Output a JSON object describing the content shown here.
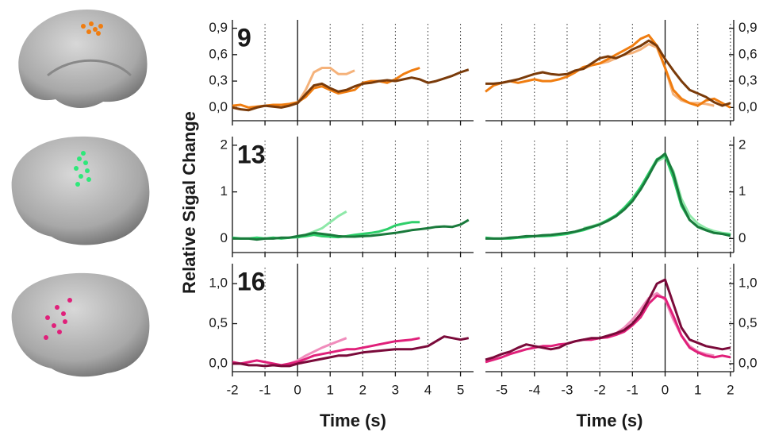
{
  "ylabel": "Relative Sigal Change",
  "chart_data": [
    {
      "type": "line",
      "label": "9",
      "yaxis": "left",
      "grid": true,
      "xlim": [
        -2,
        5.4
      ],
      "xticks": [
        -2,
        -1,
        0,
        1,
        2,
        3,
        4,
        5
      ],
      "ylim": [
        -0.15,
        0.95
      ],
      "yticks": [
        {
          "value": 0,
          "label": "0,0"
        },
        {
          "value": 0.3,
          "label": "0,3"
        },
        {
          "value": 0.6,
          "label": "0,6"
        },
        {
          "value": 0.9,
          "label": "0,9"
        }
      ],
      "x": [
        -2,
        -1.75,
        -1.5,
        -1.25,
        -1,
        -0.75,
        -0.5,
        -0.25,
        0,
        0.25,
        0.5,
        0.75,
        1,
        1.25,
        1.5,
        1.75,
        2,
        2.25,
        2.5,
        2.75,
        3,
        3.25,
        3.5,
        3.75,
        4,
        4.25,
        4.5,
        4.75,
        5,
        5.25
      ],
      "series": [
        {
          "color": "#f5b27a",
          "values": [
            null,
            null,
            null,
            null,
            null,
            null,
            null,
            null,
            0.05,
            0.2,
            0.4,
            0.45,
            0.45,
            0.38,
            0.38,
            0.42,
            null,
            null,
            null,
            null,
            null,
            null,
            null,
            null,
            null,
            null,
            null,
            null,
            null,
            null
          ]
        },
        {
          "color": "#f07d10",
          "values": [
            0.02,
            0.03,
            0.0,
            0.01,
            0.02,
            0.03,
            0.03,
            0.04,
            0.06,
            0.12,
            0.22,
            0.24,
            0.2,
            0.16,
            0.18,
            0.2,
            0.28,
            0.3,
            0.3,
            0.28,
            0.32,
            0.38,
            0.42,
            0.45,
            null,
            null,
            null,
            null,
            null,
            null
          ]
        },
        {
          "color": "#7a3b0a",
          "values": [
            0.0,
            -0.02,
            -0.03,
            0.0,
            0.02,
            0.01,
            0.0,
            0.02,
            0.05,
            0.15,
            0.25,
            0.27,
            0.22,
            0.18,
            0.2,
            0.24,
            0.27,
            0.28,
            0.3,
            0.31,
            0.3,
            0.32,
            0.34,
            0.32,
            0.28,
            0.3,
            0.33,
            0.36,
            0.4,
            0.43
          ]
        }
      ]
    },
    {
      "type": "line",
      "yaxis": "right",
      "grid": true,
      "xlim": [
        -5.5,
        2.1
      ],
      "xticks": [
        -5,
        -4,
        -3,
        -2,
        -1,
        0,
        1,
        2
      ],
      "ylim": [
        -0.15,
        0.95
      ],
      "yticks": [
        {
          "value": 0,
          "label": "0,0"
        },
        {
          "value": 0.3,
          "label": "0,3"
        },
        {
          "value": 0.6,
          "label": "0,6"
        },
        {
          "value": 0.9,
          "label": "0,9"
        }
      ],
      "x": [
        -5.5,
        -5.25,
        -5,
        -4.75,
        -4.5,
        -4.25,
        -4,
        -3.75,
        -3.5,
        -3.25,
        -3,
        -2.75,
        -2.5,
        -2.25,
        -2,
        -1.75,
        -1.5,
        -1.25,
        -1,
        -0.75,
        -0.5,
        -0.25,
        0,
        0.25,
        0.5,
        0.75,
        1,
        1.25,
        1.5,
        1.75,
        2
      ],
      "series": [
        {
          "color": "#f5b27a",
          "values": [
            null,
            null,
            null,
            null,
            null,
            null,
            null,
            null,
            null,
            null,
            null,
            null,
            0.44,
            0.48,
            0.5,
            0.52,
            0.56,
            0.6,
            0.62,
            0.66,
            0.72,
            0.68,
            0.45,
            0.15,
            0.08,
            0.05,
            0.05,
            0.04,
            0.02,
            null,
            null
          ]
        },
        {
          "color": "#f07d10",
          "values": [
            0.18,
            0.25,
            0.28,
            0.3,
            0.28,
            0.3,
            0.32,
            0.3,
            0.3,
            0.32,
            0.35,
            0.4,
            0.46,
            0.48,
            0.5,
            0.55,
            0.6,
            0.65,
            0.7,
            0.78,
            0.82,
            0.7,
            0.45,
            0.2,
            0.1,
            0.05,
            0.02,
            0.08,
            0.1,
            0.05,
            0.0
          ]
        },
        {
          "color": "#7a3b0a",
          "values": [
            0.27,
            0.27,
            0.28,
            0.3,
            0.32,
            0.35,
            0.38,
            0.4,
            0.38,
            0.37,
            0.38,
            0.42,
            0.44,
            0.5,
            0.56,
            0.58,
            0.56,
            0.6,
            0.66,
            0.7,
            0.76,
            0.7,
            0.55,
            0.42,
            0.3,
            0.2,
            0.16,
            0.12,
            0.06,
            0.02,
            0.05
          ]
        }
      ]
    },
    {
      "type": "line",
      "label": "13",
      "yaxis": "left",
      "grid": true,
      "xlim": [
        -2,
        5.4
      ],
      "xticks": [
        -2,
        -1,
        0,
        1,
        2,
        3,
        4,
        5
      ],
      "ylim": [
        -0.3,
        2.1
      ],
      "yticks": [
        0,
        1,
        2
      ],
      "x": [
        -2,
        -1.75,
        -1.5,
        -1.25,
        -1,
        -0.75,
        -0.5,
        -0.25,
        0,
        0.25,
        0.5,
        0.75,
        1,
        1.25,
        1.5,
        1.75,
        2,
        2.25,
        2.5,
        2.75,
        3,
        3.25,
        3.5,
        3.75,
        4,
        4.25,
        4.5,
        4.75,
        5,
        5.25
      ],
      "series": [
        {
          "color": "#8ee8a8",
          "values": [
            null,
            null,
            null,
            null,
            null,
            null,
            null,
            null,
            0.02,
            0.08,
            0.15,
            0.22,
            0.35,
            0.48,
            0.58,
            null,
            null,
            null,
            null,
            null,
            null,
            null,
            null,
            null,
            null,
            null,
            null,
            null,
            null,
            null
          ]
        },
        {
          "color": "#2ecf6a",
          "values": [
            0.02,
            0.0,
            0.0,
            0.02,
            0.0,
            0.02,
            0.0,
            0.02,
            0.03,
            0.05,
            0.08,
            0.05,
            0.04,
            0.03,
            0.05,
            0.08,
            0.1,
            0.12,
            0.15,
            0.2,
            0.28,
            0.32,
            0.35,
            0.35,
            null,
            null,
            null,
            null,
            null,
            null
          ]
        },
        {
          "color": "#1a7a3c",
          "values": [
            0.0,
            0.0,
            0.0,
            -0.02,
            0.0,
            0.0,
            0.02,
            0.02,
            0.05,
            0.08,
            0.12,
            0.1,
            0.08,
            0.05,
            0.04,
            0.04,
            0.05,
            0.06,
            0.08,
            0.1,
            0.12,
            0.15,
            0.18,
            0.2,
            0.22,
            0.25,
            0.26,
            0.25,
            0.3,
            0.4
          ]
        }
      ]
    },
    {
      "type": "line",
      "yaxis": "right",
      "grid": true,
      "xlim": [
        -5.5,
        2.1
      ],
      "xticks": [
        -5,
        -4,
        -3,
        -2,
        -1,
        0,
        1,
        2
      ],
      "ylim": [
        -0.3,
        2.1
      ],
      "yticks": [
        0,
        1,
        2
      ],
      "x": [
        -5.5,
        -5.25,
        -5,
        -4.75,
        -4.5,
        -4.25,
        -4,
        -3.75,
        -3.5,
        -3.25,
        -3,
        -2.75,
        -2.5,
        -2.25,
        -2,
        -1.75,
        -1.5,
        -1.25,
        -1,
        -0.75,
        -0.5,
        -0.25,
        0,
        0.25,
        0.5,
        0.75,
        1,
        1.25,
        1.5,
        1.75,
        2
      ],
      "series": [
        {
          "color": "#8ee8a8",
          "values": [
            null,
            null,
            null,
            null,
            null,
            null,
            null,
            null,
            null,
            null,
            null,
            null,
            0.22,
            0.26,
            0.32,
            0.4,
            0.5,
            0.65,
            0.85,
            1.1,
            1.38,
            1.65,
            1.75,
            1.45,
            0.85,
            0.5,
            0.32,
            0.22,
            0.16,
            0.12,
            0.1
          ]
        },
        {
          "color": "#2ecf6a",
          "values": [
            0.02,
            0.0,
            0.0,
            0.0,
            0.02,
            0.03,
            0.05,
            0.05,
            0.06,
            0.08,
            0.1,
            0.14,
            0.18,
            0.24,
            0.3,
            0.4,
            0.5,
            0.66,
            0.85,
            1.1,
            1.4,
            1.7,
            1.78,
            1.3,
            0.7,
            0.4,
            0.25,
            0.18,
            0.12,
            0.1,
            0.08
          ]
        },
        {
          "color": "#1a7a3c",
          "values": [
            0.0,
            0.0,
            0.0,
            0.02,
            0.03,
            0.05,
            0.05,
            0.07,
            0.08,
            0.1,
            0.12,
            0.15,
            0.2,
            0.25,
            0.3,
            0.38,
            0.48,
            0.62,
            0.8,
            1.05,
            1.35,
            1.68,
            1.82,
            1.4,
            0.75,
            0.4,
            0.25,
            0.18,
            0.12,
            0.1,
            0.06
          ]
        }
      ]
    },
    {
      "type": "line",
      "label": "16",
      "yaxis": "left",
      "grid": true,
      "xlabel": "Time (s)",
      "xlim": [
        -2,
        5.4
      ],
      "xticks": [
        -2,
        -1,
        0,
        1,
        2,
        3,
        4,
        5
      ],
      "ylim": [
        -0.1,
        1.2
      ],
      "yticks": [
        {
          "value": 0,
          "label": "0,0"
        },
        {
          "value": 0.5,
          "label": "0,5"
        },
        {
          "value": 1,
          "label": "1,0"
        }
      ],
      "x": [
        -2,
        -1.75,
        -1.5,
        -1.25,
        -1,
        -0.75,
        -0.5,
        -0.25,
        0,
        0.25,
        0.5,
        0.75,
        1,
        1.25,
        1.5,
        1.75,
        2,
        2.25,
        2.5,
        2.75,
        3,
        3.25,
        3.5,
        3.75,
        4,
        4.25,
        4.5,
        4.75,
        5,
        5.25
      ],
      "series": [
        {
          "color": "#f08cbc",
          "values": [
            null,
            null,
            null,
            null,
            null,
            null,
            null,
            0.0,
            0.04,
            0.1,
            0.15,
            0.2,
            0.24,
            0.28,
            0.32,
            null,
            null,
            null,
            null,
            null,
            null,
            null,
            null,
            null,
            null,
            null,
            null,
            null,
            null,
            null
          ]
        },
        {
          "color": "#e0207a",
          "values": [
            0.02,
            0.0,
            0.02,
            0.04,
            0.02,
            0.0,
            -0.02,
            0.0,
            0.02,
            0.06,
            0.1,
            0.12,
            0.14,
            0.16,
            0.18,
            0.18,
            0.2,
            0.22,
            0.24,
            0.26,
            0.28,
            0.29,
            0.3,
            0.32,
            null,
            null,
            null,
            null,
            null,
            null
          ]
        },
        {
          "color": "#7a0a3a",
          "values": [
            0.0,
            0.0,
            -0.02,
            -0.02,
            -0.03,
            -0.02,
            -0.03,
            -0.03,
            0.0,
            0.02,
            0.04,
            0.06,
            0.08,
            0.1,
            0.1,
            0.12,
            0.14,
            0.15,
            0.16,
            0.17,
            0.18,
            0.18,
            0.18,
            0.2,
            0.22,
            0.28,
            0.34,
            0.32,
            0.3,
            0.32
          ]
        }
      ]
    },
    {
      "type": "line",
      "yaxis": "right",
      "grid": true,
      "xlabel": "Time (s)",
      "xlim": [
        -5.5,
        2.1
      ],
      "xticks": [
        -5,
        -4,
        -3,
        -2,
        -1,
        0,
        1,
        2
      ],
      "ylim": [
        -0.1,
        1.2
      ],
      "yticks": [
        {
          "value": 0,
          "label": "0,0"
        },
        {
          "value": 0.5,
          "label": "0,5"
        },
        {
          "value": 1,
          "label": "1,0"
        }
      ],
      "x": [
        -5.5,
        -5.25,
        -5,
        -4.75,
        -4.5,
        -4.25,
        -4,
        -3.75,
        -3.5,
        -3.25,
        -3,
        -2.75,
        -2.5,
        -2.25,
        -2,
        -1.75,
        -1.5,
        -1.25,
        -1,
        -0.75,
        -0.5,
        -0.25,
        0,
        0.25,
        0.5,
        0.75,
        1,
        1.25,
        1.5,
        1.75,
        2
      ],
      "series": [
        {
          "color": "#f08cbc",
          "values": [
            null,
            null,
            null,
            null,
            null,
            null,
            null,
            null,
            null,
            null,
            null,
            null,
            0.3,
            0.3,
            0.32,
            0.34,
            0.38,
            0.45,
            0.55,
            0.68,
            0.82,
            0.88,
            0.8,
            0.55,
            0.35,
            0.22,
            0.15,
            0.12,
            0.1,
            null,
            null
          ]
        },
        {
          "color": "#e0207a",
          "values": [
            0.02,
            0.05,
            0.08,
            0.12,
            0.15,
            0.18,
            0.2,
            0.22,
            0.22,
            0.24,
            0.25,
            0.28,
            0.3,
            0.3,
            0.32,
            0.33,
            0.36,
            0.4,
            0.48,
            0.58,
            0.75,
            0.85,
            0.82,
            0.6,
            0.35,
            0.2,
            0.14,
            0.1,
            0.08,
            0.1,
            0.08
          ]
        },
        {
          "color": "#7a0a3a",
          "values": [
            0.05,
            0.08,
            0.12,
            0.15,
            0.2,
            0.24,
            0.22,
            0.2,
            0.18,
            0.2,
            0.25,
            0.28,
            0.3,
            0.32,
            0.32,
            0.35,
            0.38,
            0.42,
            0.5,
            0.62,
            0.8,
            1.0,
            1.05,
            0.75,
            0.45,
            0.3,
            0.26,
            0.22,
            0.2,
            0.18,
            0.2
          ]
        }
      ]
    }
  ]
}
